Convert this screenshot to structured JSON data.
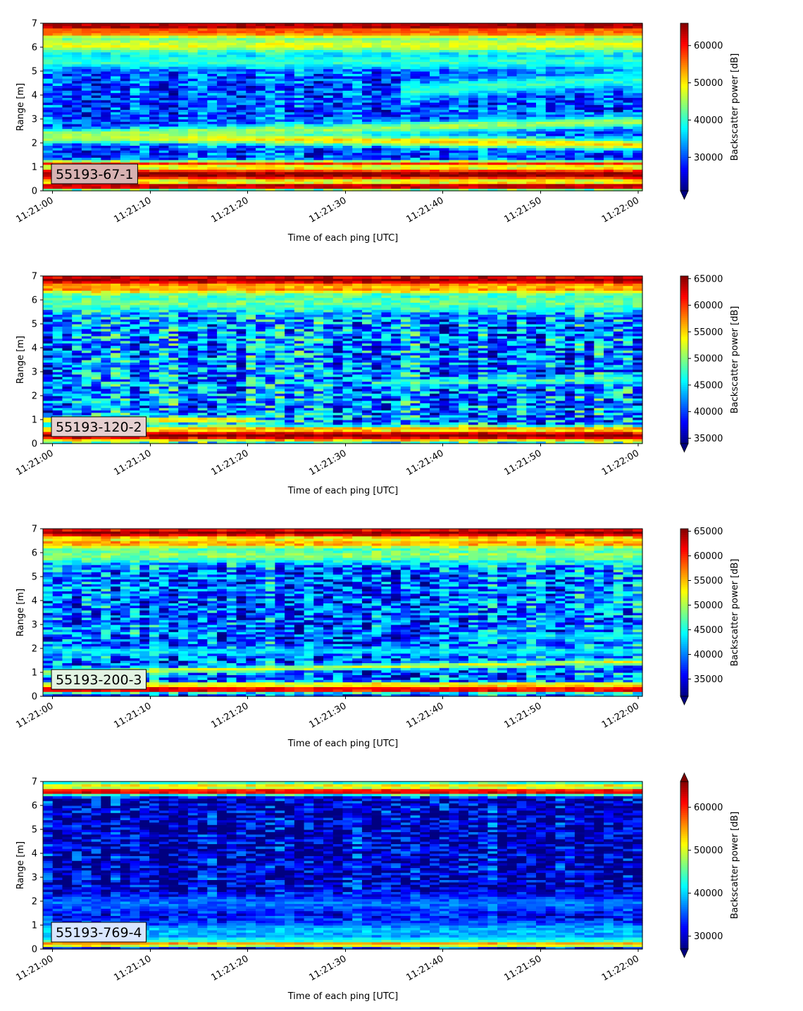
{
  "chart_data": [
    {
      "type": "heatmap",
      "label": "55193-67-1",
      "xlabel": "Time of each ping [UTC]",
      "ylabel": "Range [m]",
      "colorbar_label": "Backscatter power [dB]",
      "colormap": "jet",
      "x_ticks": [
        "11:21:00",
        "11:21:10",
        "11:21:20",
        "11:21:30",
        "11:21:40",
        "11:21:50",
        "11:22:00"
      ],
      "y_ticks": [
        0,
        1,
        2,
        3,
        4,
        5,
        6,
        7
      ],
      "ylim": [
        0,
        7
      ],
      "cbar_ticks": [
        30000,
        40000,
        50000,
        60000
      ],
      "cbar_range": [
        21000,
        66000
      ],
      "cbar_extend": "min",
      "label_box_color": "#d7b2b2",
      "bands": [
        {
          "center": 0.2,
          "width": 0.15,
          "value": 66000
        },
        {
          "center": 0.7,
          "width": 0.3,
          "value": 66000
        },
        {
          "center": 1.15,
          "width": 0.12,
          "value": 58000
        },
        {
          "center": 2.3,
          "width": 0.22,
          "value": 51000,
          "center_end": 1.95
        },
        {
          "center": 2.3,
          "width": 0.25,
          "value": 45000,
          "center_end": 2.9
        },
        {
          "center": 3.4,
          "width": 0.35,
          "value": 40000,
          "center_end": 4.7,
          "from": 0.6
        },
        {
          "center": 5.4,
          "width": 0.3,
          "value": 40000
        },
        {
          "center": 6.1,
          "width": 0.35,
          "value": 48000
        },
        {
          "center": 6.6,
          "width": 0.2,
          "value": 55000
        },
        {
          "center": 6.9,
          "width": 0.2,
          "value": 66000
        }
      ],
      "background": 30000
    },
    {
      "type": "heatmap",
      "label": "55193-120-2",
      "xlabel": "Time of each ping [UTC]",
      "ylabel": "Range [m]",
      "colorbar_label": "Backscatter power [dB]",
      "colormap": "jet",
      "x_ticks": [
        "11:21:00",
        "11:21:10",
        "11:21:20",
        "11:21:30",
        "11:21:40",
        "11:21:50",
        "11:22:00"
      ],
      "y_ticks": [
        0,
        1,
        2,
        3,
        4,
        5,
        6,
        7
      ],
      "ylim": [
        0,
        7
      ],
      "cbar_ticks": [
        35000,
        40000,
        45000,
        50000,
        55000,
        60000,
        65000
      ],
      "cbar_range": [
        34000,
        65500
      ],
      "cbar_extend": "min",
      "label_box_color": "#e6d0d0",
      "bands": [
        {
          "center": 0.35,
          "width": 0.25,
          "value": 65500
        },
        {
          "center": 0.65,
          "width": 0.1,
          "value": 56000
        },
        {
          "center": 1.0,
          "width": 0.12,
          "value": 55000,
          "to": 0.35
        },
        {
          "center": 2.3,
          "width": 0.15,
          "value": 48000,
          "center_end": 2.7,
          "from": 0.55
        },
        {
          "center": 5.9,
          "width": 0.4,
          "value": 49000
        },
        {
          "center": 6.45,
          "width": 0.2,
          "value": 56000
        },
        {
          "center": 6.85,
          "width": 0.25,
          "value": 65500
        }
      ],
      "background": 42000
    },
    {
      "type": "heatmap",
      "label": "55193-200-3",
      "xlabel": "Time of each ping [UTC]",
      "ylabel": "Range [m]",
      "colorbar_label": "Backscatter power [dB]",
      "colormap": "jet",
      "x_ticks": [
        "11:21:00",
        "11:21:10",
        "11:21:20",
        "11:21:30",
        "11:21:40",
        "11:21:50",
        "11:22:00"
      ],
      "y_ticks": [
        0,
        1,
        2,
        3,
        4,
        5,
        6,
        7
      ],
      "ylim": [
        0,
        7
      ],
      "cbar_ticks": [
        35000,
        40000,
        45000,
        50000,
        55000,
        60000,
        65000
      ],
      "cbar_range": [
        31500,
        65500
      ],
      "cbar_extend": "min",
      "label_box_color": "#e3f4e3",
      "bands": [
        {
          "center": 0.3,
          "width": 0.12,
          "value": 65500
        },
        {
          "center": 0.5,
          "width": 0.1,
          "value": 56000
        },
        {
          "center": 1.0,
          "width": 0.12,
          "value": 52000,
          "center_end": 1.45
        },
        {
          "center": 1.9,
          "width": 0.15,
          "value": 44000
        },
        {
          "center": 2.5,
          "width": 0.15,
          "value": 44000,
          "from": 0.7
        },
        {
          "center": 5.9,
          "width": 0.35,
          "value": 49000
        },
        {
          "center": 6.4,
          "width": 0.2,
          "value": 56000
        },
        {
          "center": 6.85,
          "width": 0.25,
          "value": 65500
        }
      ],
      "background": 39000
    },
    {
      "type": "heatmap",
      "label": "55193-769-4",
      "xlabel": "Time of each ping [UTC]",
      "ylabel": "Range [m]",
      "colorbar_label": "Backscatter power [dB]",
      "colormap": "jet",
      "x_ticks": [
        "11:21:00",
        "11:21:10",
        "11:21:20",
        "11:21:30",
        "11:21:40",
        "11:21:50",
        "11:22:00"
      ],
      "y_ticks": [
        0,
        1,
        2,
        3,
        4,
        5,
        6,
        7
      ],
      "ylim": [
        0,
        7
      ],
      "cbar_ticks": [
        30000,
        40000,
        50000,
        60000
      ],
      "cbar_range": [
        27000,
        66000
      ],
      "cbar_extend": "both",
      "label_box_color": "#d9e6ff",
      "bands": [
        {
          "center": 0.22,
          "width": 0.1,
          "value": 66000
        },
        {
          "center": 0.4,
          "width": 0.1,
          "value": 50000
        },
        {
          "center": 0.75,
          "width": 0.45,
          "value": 39000
        },
        {
          "center": 1.9,
          "width": 0.4,
          "value": 36000
        },
        {
          "center": 6.6,
          "width": 0.15,
          "value": 66000
        },
        {
          "center": 6.85,
          "width": 0.15,
          "value": 52000
        }
      ],
      "background": 30000
    }
  ]
}
